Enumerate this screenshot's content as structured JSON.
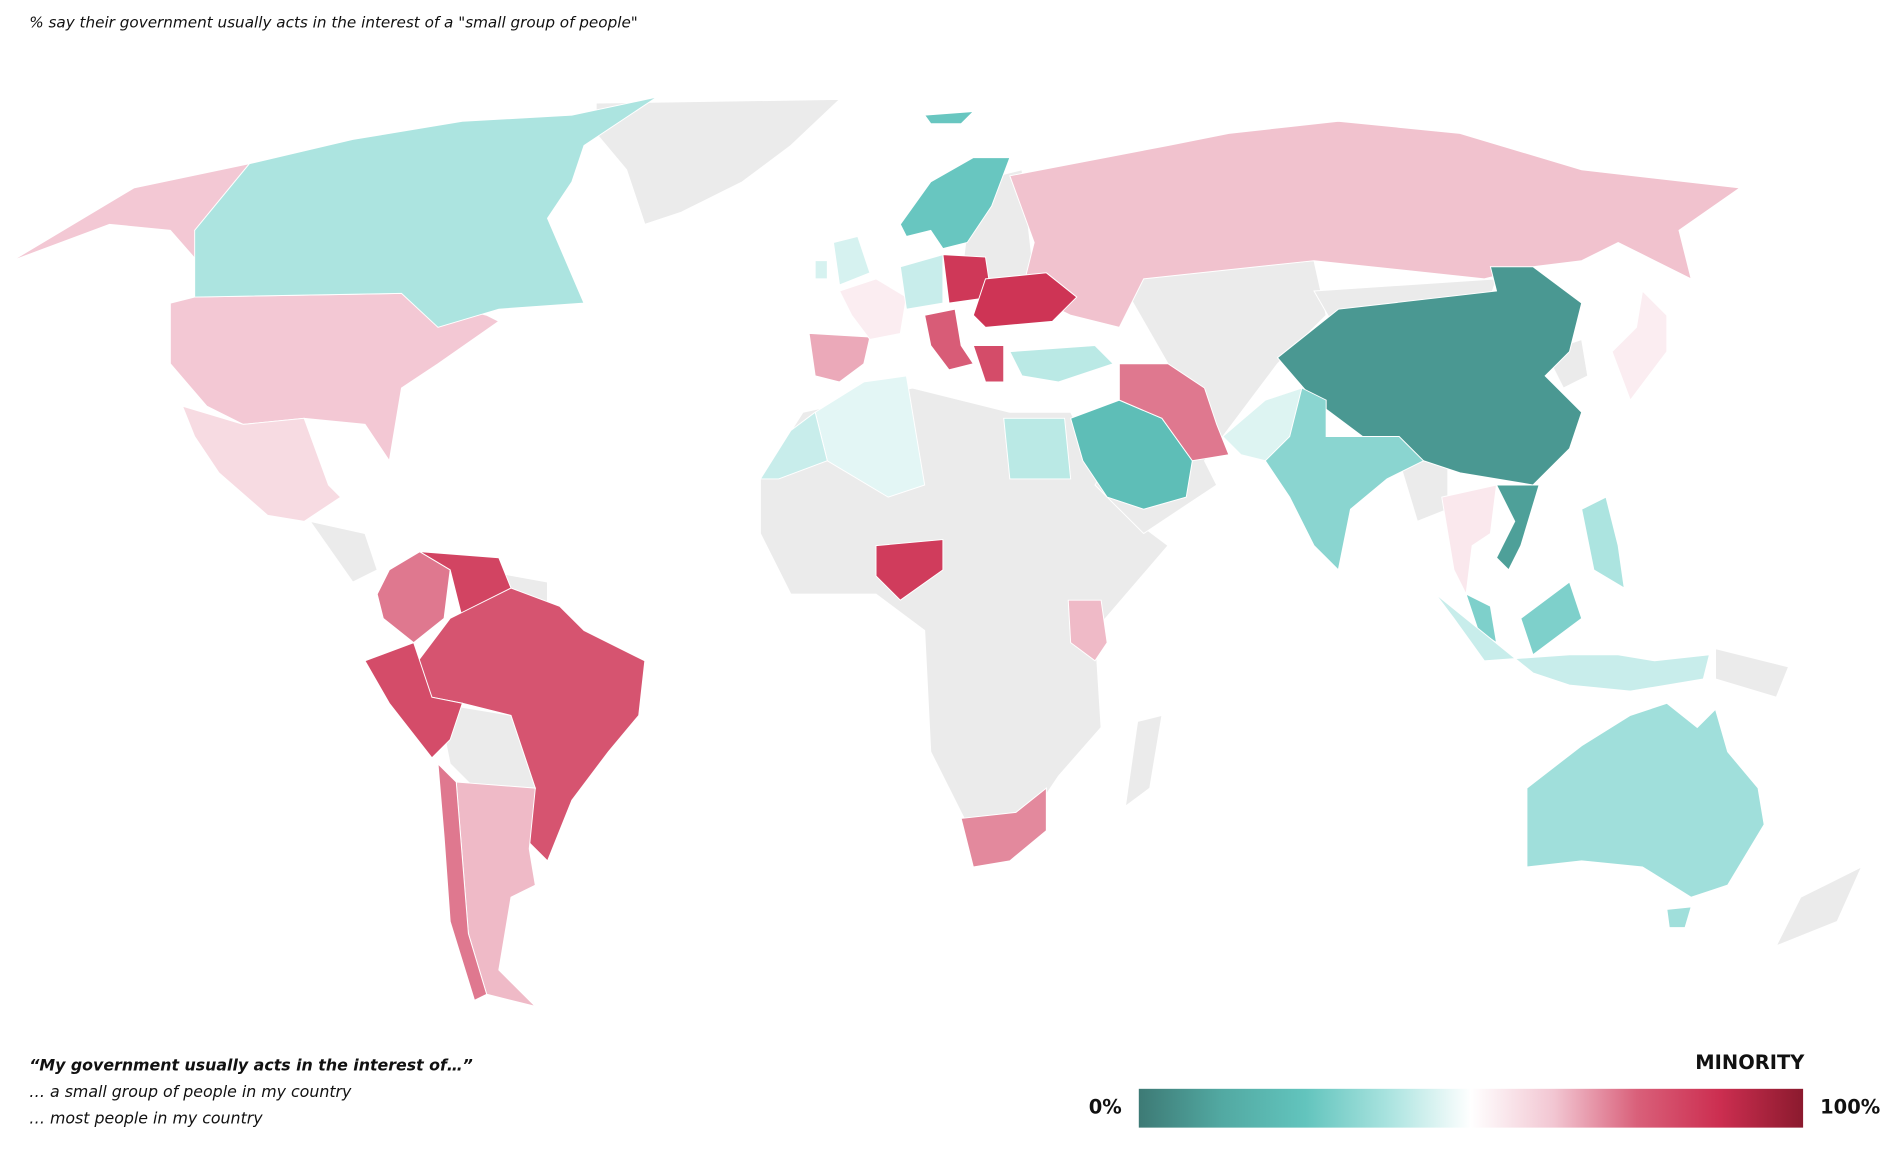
{
  "chart_data": {
    "type": "map",
    "title": "% say their government usually acts in the interest of a \"small group of people\"",
    "legend_title": "“My government usually acts in the interest of…”",
    "legend_items": [
      "… a small group of people in my country",
      "… most people in my country"
    ],
    "scale": {
      "title": "MINORITY",
      "range": [
        0,
        100
      ],
      "ticks": [
        {
          "value": 0,
          "label": "0%"
        },
        {
          "value": 100,
          "label": "100%"
        }
      ],
      "colors": [
        "#3d7a75",
        "#52a9a2",
        "#62c4bd",
        "#a9e3df",
        "#ffffff",
        "#f2c6d2",
        "#d9607a",
        "#cc2e50",
        "#8b1a2e"
      ]
    },
    "no_data_color": "#ebebeb",
    "regions": [
      {
        "value": 62
      },
      {
        "value": 38
      },
      {
        "value": 58
      },
      {
        "value": 72
      },
      {
        "value": 82
      },
      {
        "value": 78
      },
      {
        "value": 80
      },
      {
        "value": 64
      },
      {
        "value": 72
      },
      {
        "value": 63
      },
      {
        "value": 8
      },
      {
        "value": 32
      },
      {
        "value": 45
      },
      {
        "value": 10
      },
      {
        "value": 55
      },
      {
        "value": 30
      },
      {
        "value": 42
      },
      {
        "value": 38
      },
      {
        "value": 54
      },
      {
        "value": 36
      },
      {
        "value": 22
      },
      {
        "value": 72
      },
      {
        "value": 40
      },
      {
        "value": 40
      },
      {
        "value": 46
      },
      {
        "value": 42
      },
      {
        "value": 84
      },
      {
        "value": 64
      },
      {
        "value": 70
      },
      {
        "value": 66
      },
      {
        "value": 54
      },
      {
        "value": 44
      },
      {
        "value": 42
      },
      {
        "value": 85
      },
      {
        "value": 86
      },
      {
        "value": 76
      },
      {
        "value": 80
      },
      {
        "value": 26
      }
    ]
  }
}
